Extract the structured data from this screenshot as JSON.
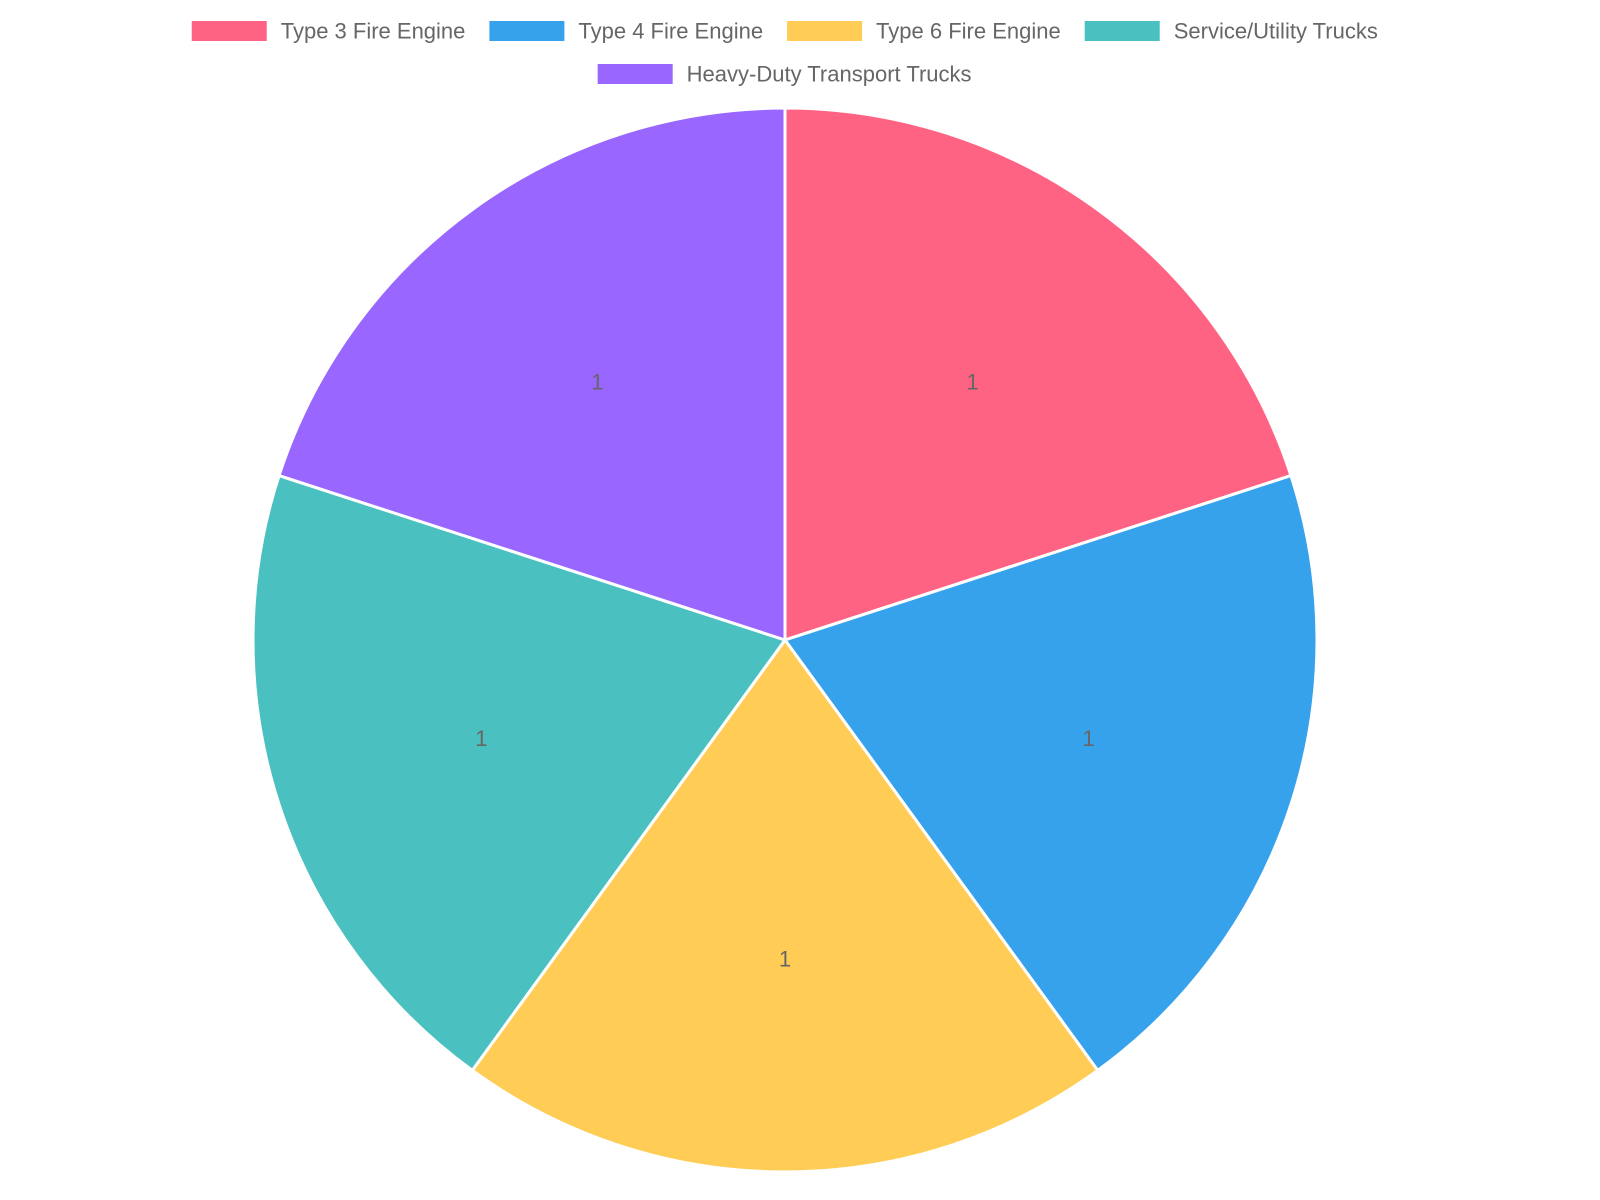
{
  "chart_data": {
    "type": "pie",
    "categories": [
      "Type 3 Fire Engine",
      "Type 4 Fire Engine",
      "Type 6 Fire Engine",
      "Service/Utility Trucks",
      "Heavy-Duty Transport Trucks"
    ],
    "values": [
      1,
      1,
      1,
      1,
      1
    ],
    "colors": [
      "#ff6384",
      "#36a2eb",
      "#ffcd56",
      "#4bc0c0",
      "#9966ff"
    ],
    "data_labels": [
      "1",
      "1",
      "1",
      "1",
      "1"
    ],
    "legend_position": "top",
    "start_angle": "12 o'clock",
    "direction": "clockwise",
    "slice_border_color": "#ffffff"
  }
}
